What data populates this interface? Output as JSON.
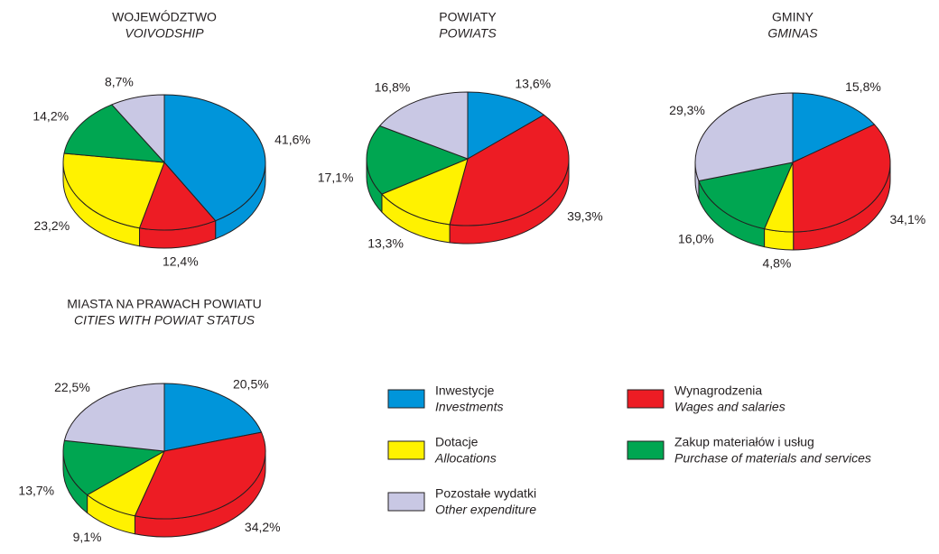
{
  "chart_data": [
    {
      "type": "pie",
      "title": "WOJEWÓDZTWO",
      "subtitle": "VOIVODSHIP",
      "values": [
        41.6,
        12.4,
        23.2,
        14.2,
        8.7
      ],
      "value_labels": [
        "41,6%",
        "12,4%",
        "23,2%",
        "14,2%",
        "8,7%"
      ]
    },
    {
      "type": "pie",
      "title": "POWIATY",
      "subtitle": "POWIATS",
      "values": [
        13.6,
        39.3,
        13.3,
        17.1,
        16.8
      ],
      "value_labels": [
        "13,6%",
        "39,3%",
        "13,3%",
        "17,1%",
        "16,8%"
      ]
    },
    {
      "type": "pie",
      "title": "GMINY",
      "subtitle": "GMINAS",
      "values": [
        15.8,
        34.1,
        4.8,
        16.0,
        29.3
      ],
      "value_labels": [
        "15,8%",
        "34,1%",
        "4,8%",
        "16,0%",
        "29,3%"
      ]
    },
    {
      "type": "pie",
      "title": "MIASTA NA PRAWACH POWIATU",
      "subtitle": "CITIES WITH POWIAT STATUS",
      "values": [
        20.5,
        34.2,
        9.1,
        13.7,
        22.5
      ],
      "value_labels": [
        "20,5%",
        "34,2%",
        "9,1%",
        "13,7%",
        "22,5%"
      ]
    }
  ],
  "legend": [
    {
      "name": "Inwestycje",
      "subtitle": "Investments",
      "color": "#0095da"
    },
    {
      "name": "Wynagrodzenia",
      "subtitle": "Wages and salaries",
      "color": "#ed1c24"
    },
    {
      "name": "Dotacje",
      "subtitle": "Allocations",
      "color": "#fff200"
    },
    {
      "name": "Zakup materiałów i usług",
      "subtitle": "Purchase of materials and services",
      "color": "#00a651"
    },
    {
      "name": "Pozostałe wydatki",
      "subtitle": "Other expenditure",
      "color": "#c9c8e4"
    }
  ]
}
